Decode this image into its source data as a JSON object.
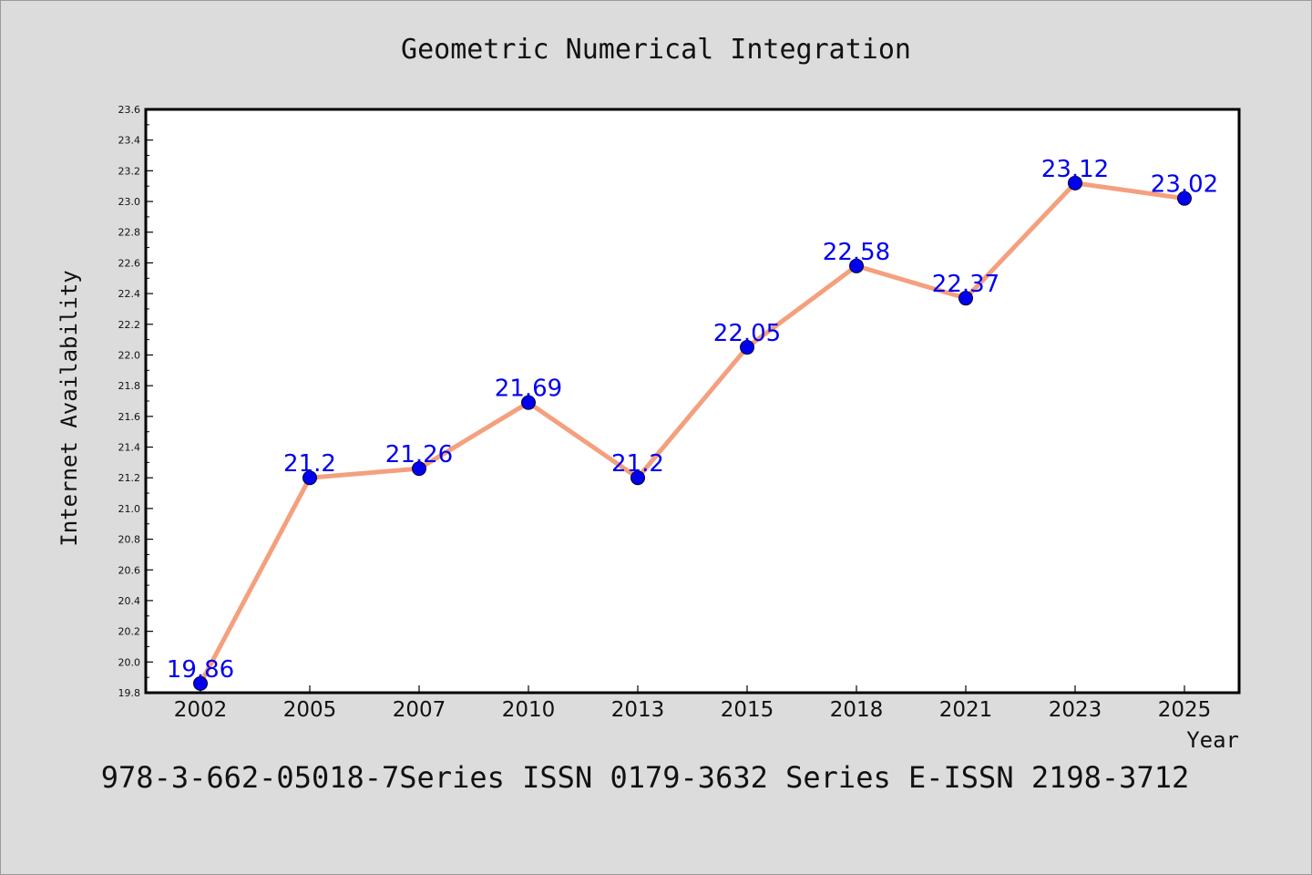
{
  "chart_data": {
    "type": "line",
    "title": "Geometric Numerical Integration",
    "xlabel": "Year",
    "ylabel": "Internet Availability",
    "categories": [
      "2002",
      "2005",
      "2007",
      "2010",
      "2013",
      "2015",
      "2018",
      "2021",
      "2023",
      "2025"
    ],
    "series": [
      {
        "values": [
          19.86,
          21.2,
          21.26,
          21.69,
          21.2,
          22.05,
          22.58,
          22.37,
          23.12,
          23.02
        ],
        "line_color": "#f4a07e",
        "marker_color": "#0000ee",
        "label_color": "#0000ee"
      }
    ],
    "data_labels": [
      "19.86",
      "21.2",
      "21.26",
      "21.69",
      "21.2",
      "22.05",
      "22.58",
      "22.37",
      "23.12",
      "23.02"
    ],
    "ylim": [
      19.8,
      23.6
    ],
    "yticks": [
      "19.8",
      "20.0",
      "20.2",
      "20.4",
      "20.6",
      "20.8",
      "21.0",
      "21.2",
      "21.4",
      "21.6",
      "21.8",
      "22.0",
      "22.2",
      "22.4",
      "22.6",
      "22.8",
      "23.0",
      "23.2",
      "23.4",
      "23.6"
    ],
    "grid": false,
    "legend": "none"
  },
  "footer": "978-3-662-05018-7Series ISSN 0179-3632 Series E-ISSN 2198-3712"
}
